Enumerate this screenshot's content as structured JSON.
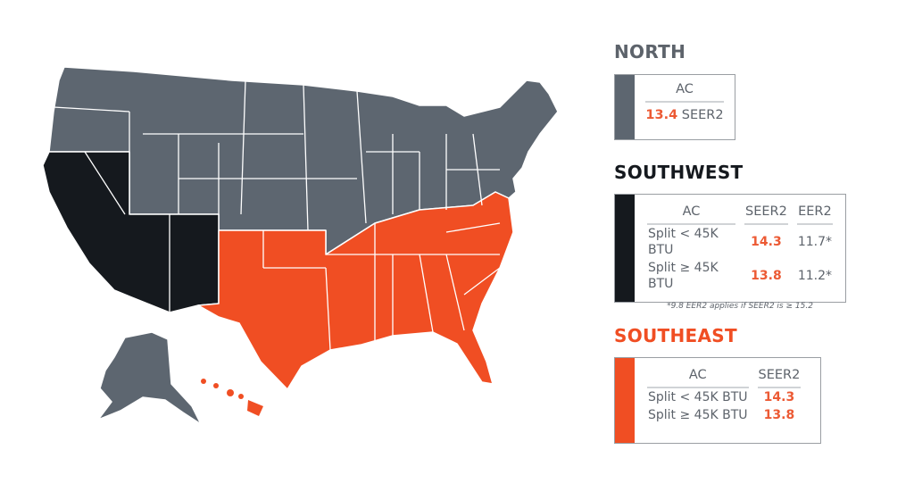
{
  "colors": {
    "north": "#5d6670",
    "southwest": "#15191e",
    "southeast": "#f04e23",
    "value": "#ec5a34"
  },
  "north": {
    "title": "NORTH",
    "col": "AC",
    "value": "13.4",
    "unit": "SEER2"
  },
  "southwest": {
    "title": "SOUTHWEST",
    "cols": [
      "AC",
      "SEER2",
      "EER2"
    ],
    "rows": [
      [
        "Split < 45K BTU",
        "14.3",
        "11.7*"
      ],
      [
        "Split ≥ 45K BTU",
        "13.8",
        "11.2*"
      ]
    ],
    "note": "*9.8 EER2 applies if SEER2 is ≥ 15.2"
  },
  "southeast": {
    "title": "SOUTHEAST",
    "cols": [
      "AC",
      "SEER2"
    ],
    "rows": [
      [
        "Split < 45K BTU",
        "14.3"
      ],
      [
        "Split ≥ 45K BTU",
        "13.8"
      ]
    ]
  }
}
